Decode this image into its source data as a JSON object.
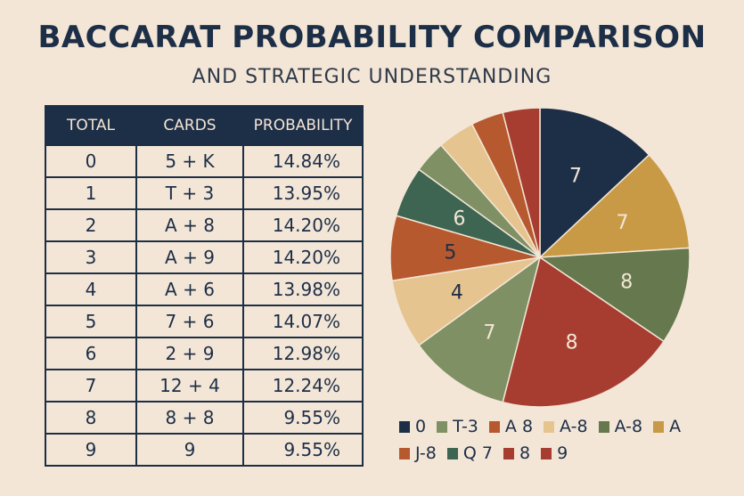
{
  "header": {
    "title": "BACCARAT PROBABILITY COMPARISON",
    "subtitle": "AND STRATEGIC UNDERSTANDING"
  },
  "table": {
    "columns": [
      "TOTAL",
      "CARDS",
      "PROBABILITY"
    ],
    "rows": [
      {
        "total": "0",
        "cards": "5 + K",
        "probability": "14.84%"
      },
      {
        "total": "1",
        "cards": "T + 3",
        "probability": "13.95%"
      },
      {
        "total": "2",
        "cards": "A + 8",
        "probability": "14.20%"
      },
      {
        "total": "3",
        "cards": "A + 9",
        "probability": "14.20%"
      },
      {
        "total": "4",
        "cards": "A + 6",
        "probability": "13.98%"
      },
      {
        "total": "5",
        "cards": "7 + 6",
        "probability": "14.07%"
      },
      {
        "total": "6",
        "cards": "2 + 9",
        "probability": "12.98%"
      },
      {
        "total": "7",
        "cards": "12 + 4",
        "probability": "12.24%"
      },
      {
        "total": "8",
        "cards": "8 + 8",
        "probability": "9.55%"
      },
      {
        "total": "9",
        "cards": "9",
        "probability": "9.55%"
      }
    ]
  },
  "chart_data": {
    "type": "pie",
    "slices": [
      {
        "label": "7",
        "value": 13.0,
        "color": "#1d2e47"
      },
      {
        "label": "7",
        "value": 11.0,
        "color": "#c99a45"
      },
      {
        "label": "8",
        "value": 10.5,
        "color": "#66784e"
      },
      {
        "label": "8",
        "value": 19.5,
        "color": "#a63d30"
      },
      {
        "label": "7",
        "value": 11.0,
        "color": "#7f9064"
      },
      {
        "label": "4",
        "value": 7.5,
        "color": "#e6c48f"
      },
      {
        "label": "5",
        "value": 7.0,
        "color": "#b6592f"
      },
      {
        "label": "6",
        "value": 5.5,
        "color": "#3e6552"
      },
      {
        "label": "",
        "value": 3.5,
        "color": "#7f9064"
      },
      {
        "label": "",
        "value": 4.0,
        "color": "#e6c48f"
      },
      {
        "label": "",
        "value": 3.5,
        "color": "#b6592f"
      },
      {
        "label": "",
        "value": 4.0,
        "color": "#a63d30"
      }
    ],
    "legend": [
      {
        "label": "0",
        "color": "#1d2e47"
      },
      {
        "label": "T-3",
        "color": "#7f9064"
      },
      {
        "label": "A 8",
        "color": "#b6592f"
      },
      {
        "label": "A-8",
        "color": "#e6c48f"
      },
      {
        "label": "A-8",
        "color": "#66784e"
      },
      {
        "label": "A",
        "color": "#c99a45"
      },
      {
        "label": "J-8",
        "color": "#b6592f"
      },
      {
        "label": "Q 7",
        "color": "#3e6552"
      },
      {
        "label": "8",
        "color": "#a63d30"
      },
      {
        "label": "9",
        "color": "#a63d30"
      }
    ],
    "legend_position": "bottom"
  }
}
